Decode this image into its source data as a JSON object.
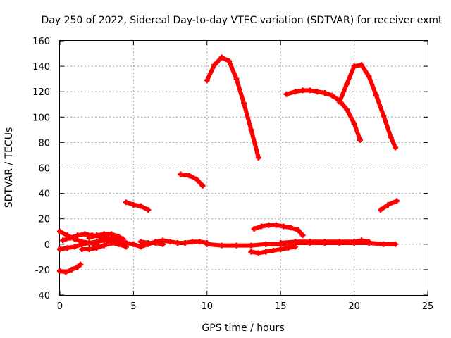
{
  "chart_data": {
    "type": "scatter",
    "title": "Day 250 of 2022, Sidereal Day-to-day VTEC variation (SDTVAR) for receiver exmt",
    "xlabel": "GPS time / hours",
    "ylabel": "SDTVAR / TECUs",
    "xlim": [
      0,
      25
    ],
    "ylim": [
      -40,
      160
    ],
    "xticks": [
      0,
      5,
      10,
      15,
      20,
      25
    ],
    "yticks": [
      -40,
      -20,
      0,
      20,
      40,
      60,
      80,
      100,
      120,
      140,
      160
    ],
    "grid": true,
    "color": "#ff0000",
    "series": [
      {
        "x": [
          10.0,
          10.5,
          11.0,
          11.5,
          12.0,
          12.5,
          13.0,
          13.5
        ],
        "y": [
          129,
          141,
          147,
          144,
          130,
          111,
          90,
          68
        ]
      },
      {
        "x": [
          15.4,
          16.0,
          16.5,
          17.0,
          17.5,
          18.0,
          18.5,
          19.0,
          19.5,
          20.0,
          20.4
        ],
        "y": [
          118,
          120,
          121,
          121,
          120,
          119,
          117,
          113,
          106,
          95,
          82
        ]
      },
      {
        "x": [
          19.0,
          19.5,
          20.0,
          20.5,
          21.0,
          21.5,
          22.0,
          22.5,
          22.8
        ],
        "y": [
          112,
          126,
          140,
          141,
          132,
          117,
          101,
          84,
          76
        ]
      },
      {
        "x": [
          8.2,
          8.8,
          9.3,
          9.7
        ],
        "y": [
          55,
          54,
          51,
          46
        ]
      },
      {
        "x": [
          4.5,
          5.0,
          5.5,
          6.0
        ],
        "y": [
          33,
          31,
          30,
          27
        ]
      },
      {
        "x": [
          21.8,
          22.3,
          22.9
        ],
        "y": [
          27,
          31,
          34
        ]
      },
      {
        "x": [
          13.2,
          13.7,
          14.2,
          14.7,
          15.2,
          15.7,
          16.2,
          16.5
        ],
        "y": [
          12,
          14,
          15,
          15,
          14,
          13,
          11,
          7
        ]
      },
      {
        "x": [
          13.0,
          13.5,
          14.0,
          14.5,
          15.0,
          15.5,
          16.0
        ],
        "y": [
          -6,
          -7,
          -6,
          -5,
          -4,
          -3,
          -2
        ]
      },
      {
        "x": [
          0.0,
          0.4,
          0.8,
          1.2,
          1.4
        ],
        "y": [
          -21,
          -22,
          -20,
          -18,
          -16
        ]
      },
      {
        "x": [
          0.0,
          0.5,
          1.0,
          1.5,
          2.0,
          2.5
        ],
        "y": [
          10,
          7,
          4,
          2,
          1,
          0
        ]
      },
      {
        "x": [
          0.2,
          0.7,
          1.2,
          1.7,
          2.2,
          2.7,
          3.2,
          3.7,
          4.0
        ],
        "y": [
          3,
          5,
          7,
          8,
          7,
          6,
          5,
          4,
          3
        ]
      },
      {
        "x": [
          0.0,
          0.5,
          1.0,
          1.5,
          2.0,
          2.5,
          3.0,
          3.5,
          4.0,
          4.5,
          5.0
        ],
        "y": [
          -4,
          -3,
          -2,
          0,
          1,
          2,
          3,
          3,
          2,
          1,
          0
        ]
      },
      {
        "x": [
          1.5,
          2.0,
          2.5,
          3.0,
          3.5,
          4.0,
          4.5
        ],
        "y": [
          -4,
          -4,
          -3,
          -1,
          1,
          0,
          -2
        ]
      },
      {
        "x": [
          2.0,
          2.5,
          3.0,
          3.5,
          4.0,
          4.3
        ],
        "y": [
          5,
          7,
          8,
          8,
          6,
          4
        ]
      },
      {
        "x": [
          5.0,
          5.5,
          6.0,
          6.5,
          7.0,
          7.5,
          8.0,
          8.5,
          9.0,
          9.5,
          10.0
        ],
        "y": [
          0,
          -2,
          0,
          2,
          3,
          2,
          1,
          1,
          2,
          2,
          1
        ]
      },
      {
        "x": [
          5.5,
          6.0,
          6.5,
          7.0
        ],
        "y": [
          2,
          1,
          1,
          0
        ]
      },
      {
        "x": [
          10.0,
          11.0,
          12.0,
          13.0,
          14.0,
          15.0,
          16.0,
          17.0,
          18.0,
          19.0,
          20.0,
          21.0,
          22.0,
          22.8
        ],
        "y": [
          0,
          -1,
          -1,
          -1,
          0,
          0,
          1,
          1,
          1,
          1,
          1,
          1,
          0,
          0
        ]
      },
      {
        "x": [
          15.0,
          16.0,
          17.0,
          18.0,
          19.0,
          20.0,
          20.5,
          21.0
        ],
        "y": [
          1,
          2,
          2,
          2,
          2,
          2,
          3,
          2
        ]
      }
    ]
  }
}
